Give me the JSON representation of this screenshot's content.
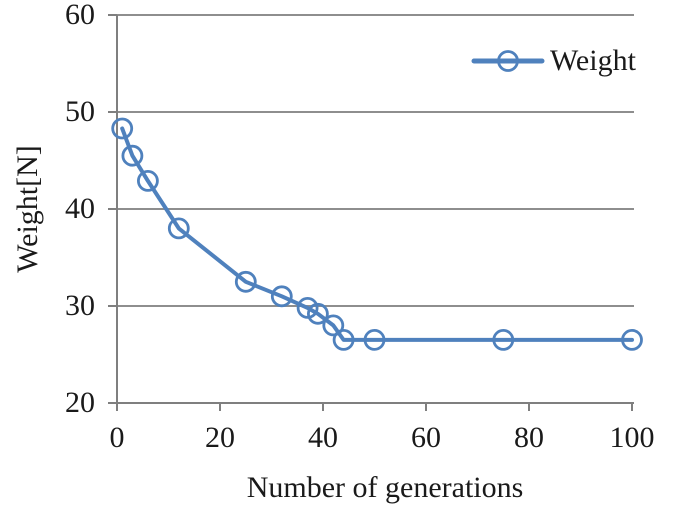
{
  "figure": {
    "background": "#ffffff",
    "text_color": "#1a1a1a"
  },
  "chart_data": {
    "type": "line",
    "title": "",
    "xlabel": "Number of generations",
    "ylabel": "Weight[N]",
    "xlim": [
      0,
      100
    ],
    "ylim": [
      20,
      60
    ],
    "x_ticks": [
      0,
      20,
      40,
      60,
      80,
      100
    ],
    "y_ticks": [
      20,
      30,
      40,
      50,
      60
    ],
    "grid": "horizontal",
    "gridline_color": "#8e8e8e",
    "axis_color": "#7f7f7f",
    "legend_position": "top-right-inside",
    "series": [
      {
        "name": "Weight",
        "color": "#4F81BD",
        "marker": "open-circle",
        "points": [
          [
            1,
            48.3
          ],
          [
            3,
            45.5
          ],
          [
            6,
            42.9
          ],
          [
            12,
            38.0
          ],
          [
            25,
            32.5
          ],
          [
            32,
            31.0
          ],
          [
            37,
            29.8
          ],
          [
            39,
            29.2
          ],
          [
            42,
            28.0
          ],
          [
            44,
            26.5
          ],
          [
            50,
            26.5
          ],
          [
            75,
            26.5
          ],
          [
            100,
            26.5
          ]
        ]
      }
    ]
  }
}
